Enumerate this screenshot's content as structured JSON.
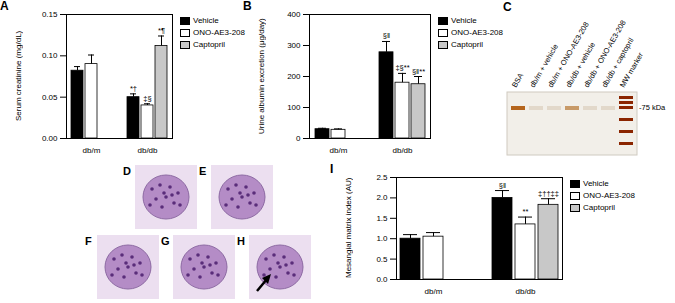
{
  "chart_data": [
    {
      "panel": "A",
      "type": "bar",
      "y_label": "Serum creatinine (mg/dL)",
      "categories": [
        "db/m",
        "db/db"
      ],
      "series": [
        {
          "name": "Vehicle",
          "color": "#000000",
          "values": [
            0.082,
            0.05
          ],
          "errors": [
            0.005,
            0.004
          ],
          "annotations": [
            null,
            "*†"
          ]
        },
        {
          "name": "ONO-AE3-208",
          "color": "#ffffff",
          "values": [
            0.09,
            0.04
          ],
          "errors": [
            0.011,
            0.002
          ],
          "annotations": [
            null,
            "‡§"
          ]
        },
        {
          "name": "Captopril",
          "color": "#c8c8c8",
          "values": [
            null,
            0.112
          ],
          "errors": [
            null,
            0.012
          ],
          "annotations": [
            null,
            "*¶"
          ]
        }
      ],
      "ylim": [
        0,
        0.15
      ],
      "yticks": [
        {
          "value": 0,
          "label": "0.00"
        },
        {
          "value": 0.05,
          "label": "0.05"
        },
        {
          "value": 0.1,
          "label": "0.10"
        },
        {
          "value": 0.15,
          "label": "0.15"
        }
      ],
      "legend": "right"
    },
    {
      "panel": "B",
      "type": "bar",
      "y_label": "Urine albumin excretion (μg/day)",
      "categories": [
        "db/m",
        "db/db"
      ],
      "series": [
        {
          "name": "Vehicle",
          "color": "#000000",
          "values": [
            30,
            278
          ],
          "errors": [
            3,
            35
          ],
          "annotations": [
            null,
            "§‖"
          ]
        },
        {
          "name": "ONO-AE3-208",
          "color": "#ffffff",
          "values": [
            28,
            180
          ],
          "errors": [
            3,
            30
          ],
          "annotations": [
            null,
            "‡§**"
          ]
        },
        {
          "name": "Captopril",
          "color": "#c8c8c8",
          "values": [
            null,
            175
          ],
          "errors": [
            null,
            25
          ],
          "annotations": [
            null,
            "§‖**"
          ]
        }
      ],
      "ylim": [
        0,
        400
      ],
      "yticks": [
        0,
        100,
        200,
        300,
        400
      ],
      "legend": "right"
    },
    {
      "panel": "I",
      "type": "bar",
      "y_label": "Mesangial matrix index (AU)",
      "categories": [
        "db/m",
        "db/db"
      ],
      "series": [
        {
          "name": "Vehicle",
          "color": "#000000",
          "values": [
            1.0,
            2.0
          ],
          "errors": [
            0.1,
            0.18
          ],
          "annotations": [
            null,
            "§‖"
          ]
        },
        {
          "name": "ONO-AE3-208",
          "color": "#ffffff",
          "values": [
            1.05,
            1.35
          ],
          "errors": [
            0.1,
            0.18
          ],
          "annotations": [
            null,
            "**"
          ]
        },
        {
          "name": "Captopril",
          "color": "#c8c8c8",
          "values": [
            null,
            1.83
          ],
          "errors": [
            null,
            0.15
          ],
          "annotations": [
            null,
            "‡††‡‡"
          ]
        }
      ],
      "ylim": [
        0,
        2.5
      ],
      "yticks": [
        {
          "value": 0,
          "label": "0.0"
        },
        {
          "value": 0.5,
          "label": "0.5"
        },
        {
          "value": 1,
          "label": "1.0"
        },
        {
          "value": 1.5,
          "label": "1.5"
        },
        {
          "value": 2,
          "label": "2.0"
        },
        {
          "value": 2.5,
          "label": "2.5"
        }
      ],
      "legend": "right"
    }
  ],
  "gel": {
    "panel": "C",
    "lanes": [
      "BSA",
      "db/m + vehicle",
      "db/m + ONO-AE3-208",
      "db/db + vehicle",
      "db/db + ONO-AE3-208",
      "db/db + captopril",
      "MW marker"
    ],
    "marker_label": "-75 kDa"
  },
  "micrographs": {
    "panels": [
      "D",
      "E",
      "F",
      "G",
      "H"
    ]
  }
}
